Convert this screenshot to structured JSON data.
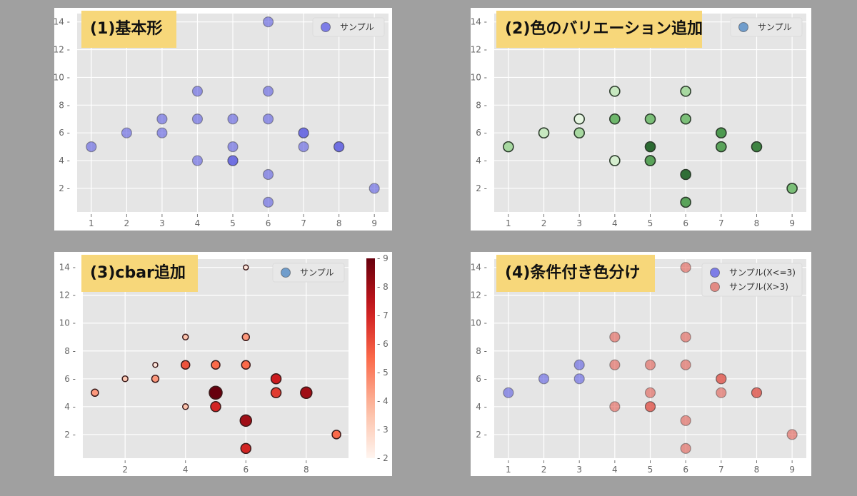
{
  "chart_data": [
    {
      "id": "p1",
      "type": "scatter",
      "title": "(1)基本形",
      "xlabel": "",
      "ylabel": "",
      "xlim": [
        0.6,
        9.4
      ],
      "ylim": [
        0.3,
        14.6
      ],
      "xticks": [
        1,
        2,
        3,
        4,
        5,
        6,
        7,
        8,
        9
      ],
      "yticks": [
        2,
        4,
        6,
        8,
        10,
        12,
        14
      ],
      "grid": true,
      "legend": [
        {
          "label": "サンプル",
          "color": "#6a6ae6"
        }
      ],
      "legend_position": "upper right",
      "series": [
        {
          "name": "サンプル",
          "color": "#5858e0",
          "alpha": 0.6,
          "x": [
            1,
            2,
            3,
            3,
            4,
            4,
            4,
            5,
            5,
            5,
            5,
            6,
            6,
            6,
            6,
            6,
            7,
            7,
            7,
            8,
            8,
            9
          ],
          "y": [
            5,
            6,
            7,
            6,
            9,
            7,
            4,
            7,
            5,
            4,
            4,
            14,
            9,
            7,
            3,
            1,
            6,
            6,
            5,
            5,
            5,
            2
          ]
        }
      ]
    },
    {
      "id": "p2",
      "type": "scatter",
      "title": "(2)色のバリエーション追加",
      "xlabel": "",
      "ylabel": "",
      "xlim": [
        0.6,
        9.4
      ],
      "ylim": [
        0.3,
        14.6
      ],
      "xticks": [
        1,
        2,
        3,
        4,
        5,
        6,
        7,
        8,
        9
      ],
      "yticks": [
        2,
        4,
        6,
        8,
        10,
        12,
        14
      ],
      "grid": true,
      "colormap": "Greens",
      "legend": [
        {
          "label": "サンプル",
          "color": "#5b8fc7"
        }
      ],
      "legend_position": "upper right",
      "series": [
        {
          "name": "サンプル",
          "x": [
            1,
            2,
            3,
            3,
            4,
            4,
            4,
            5,
            5,
            5,
            5,
            6,
            6,
            6,
            6,
            6,
            7,
            7,
            8,
            9
          ],
          "y": [
            5,
            6,
            7,
            6,
            9,
            7,
            4,
            7,
            5,
            4,
            4,
            14,
            9,
            7,
            3,
            1,
            6,
            5,
            5,
            2
          ],
          "colors": [
            "#a7d8a0",
            "#c7e8c0",
            "#e6f5e1",
            "#a7d8a0",
            "#c7e8c0",
            "#6eb76c",
            "#d5eecf",
            "#7bbf78",
            "#2b6a32",
            "#5aa35a",
            "#5aa35a",
            "#c7e8c0",
            "#a7d8a0",
            "#7bbf78",
            "#2f6e36",
            "#5aa35a",
            "#4d9a50",
            "#5aa35a",
            "#3e8442",
            "#7bbf78"
          ]
        }
      ]
    },
    {
      "id": "p3",
      "type": "scatter",
      "title": "(3)cbar追加",
      "xlabel": "",
      "ylabel": "",
      "xlim": [
        0.6,
        9.4
      ],
      "ylim": [
        0.3,
        14.6
      ],
      "xticks": [
        2,
        4,
        6,
        8
      ],
      "yticks": [
        2,
        4,
        6,
        8,
        10,
        12,
        14
      ],
      "grid": true,
      "colormap": "Reds",
      "colorbar": {
        "min": 2,
        "max": 9,
        "ticks": [
          2,
          3,
          4,
          5,
          6,
          7,
          8,
          9
        ]
      },
      "legend": [
        {
          "label": "サンプル",
          "color": "#5b8fc7"
        }
      ],
      "legend_position": "upper right",
      "series": [
        {
          "name": "サンプル",
          "x": [
            1,
            2,
            3,
            3,
            4,
            4,
            4,
            5,
            5,
            5,
            6,
            6,
            6,
            6,
            6,
            7,
            7,
            8,
            9
          ],
          "y": [
            5,
            6,
            7,
            6,
            9,
            7,
            4,
            7,
            5,
            4,
            14,
            9,
            7,
            3,
            1,
            6,
            5,
            5,
            2
          ],
          "sizes": [
            5,
            4,
            3.5,
            5,
            4,
            6,
            4,
            6,
            9,
            7,
            3.5,
            5,
            6,
            8,
            7,
            7,
            7,
            8,
            6
          ],
          "values": [
            4.5,
            3.3,
            2.5,
            4.5,
            3.5,
            6,
            3.5,
            5.5,
            9,
            7,
            2.5,
            4.5,
            5.5,
            8,
            7,
            7.2,
            6.5,
            8,
            5.5
          ]
        }
      ]
    },
    {
      "id": "p4",
      "type": "scatter",
      "title": "(4)条件付き色分け",
      "xlabel": "",
      "ylabel": "",
      "xlim": [
        0.6,
        9.4
      ],
      "ylim": [
        0.3,
        14.6
      ],
      "xticks": [
        1,
        2,
        3,
        4,
        5,
        6,
        7,
        8,
        9
      ],
      "yticks": [
        2,
        4,
        6,
        8,
        10,
        12,
        14
      ],
      "grid": true,
      "legend": [
        {
          "label": "サンプル(X<=3)",
          "color": "#6a6ae6"
        },
        {
          "label": "サンプル(X>3)",
          "color": "#e07a72"
        }
      ],
      "legend_position": "upper right",
      "series": [
        {
          "name": "サンプル(X<=3)",
          "color": "#5858e0",
          "alpha": 0.6,
          "x": [
            1,
            2,
            3,
            3
          ],
          "y": [
            5,
            6,
            7,
            6
          ]
        },
        {
          "name": "サンプル(X>3)",
          "color": "#e05a50",
          "alpha": 0.6,
          "x": [
            4,
            4,
            4,
            5,
            5,
            5,
            5,
            6,
            6,
            6,
            6,
            6,
            7,
            7,
            7,
            8,
            8,
            9
          ],
          "y": [
            9,
            7,
            4,
            7,
            5,
            4,
            4,
            14,
            9,
            7,
            3,
            1,
            6,
            6,
            5,
            5,
            5,
            2
          ]
        }
      ]
    }
  ],
  "panels": [
    {
      "title": "(1)基本形"
    },
    {
      "title": "(2)色のバリエーション追加"
    },
    {
      "title": "(3)cbar追加"
    },
    {
      "title": "(4)条件付き色分け"
    }
  ]
}
